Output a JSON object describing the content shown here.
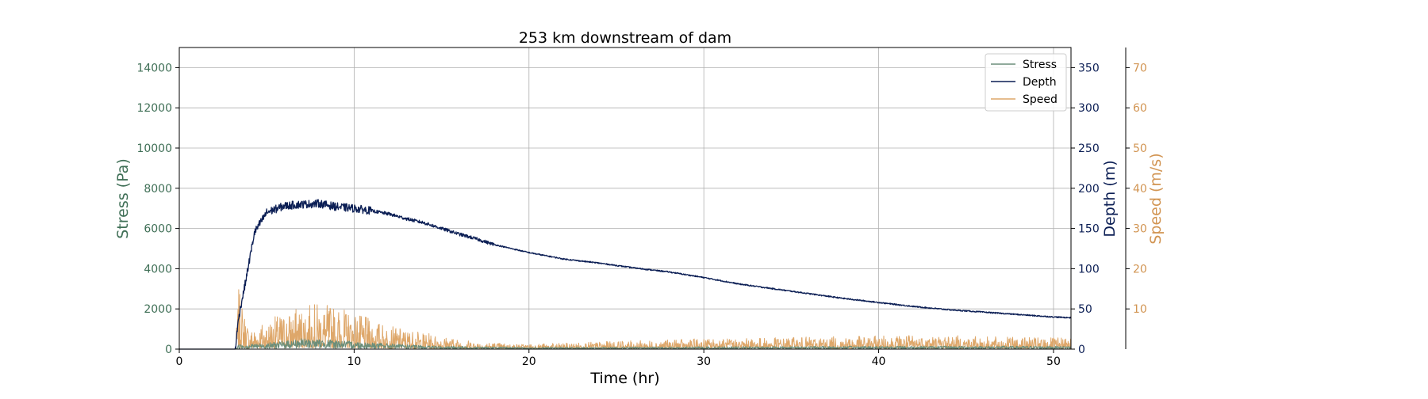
{
  "chart_data": {
    "type": "line",
    "title": "253 km downstream of dam",
    "xlabel": "Time (hr)",
    "xlim": [
      0,
      51
    ],
    "grid": true,
    "legend_position": "top-right",
    "colors": {
      "stress": "#6b8e7a",
      "depth": "#0c1f55",
      "speed": "#dea76a",
      "stress_axis": "#3f6f56",
      "depth_axis": "#0c1f55",
      "speed_axis": "#d29553"
    },
    "x_ticks": [
      "0",
      "10",
      "20",
      "30",
      "40",
      "50"
    ],
    "axes": {
      "stress": {
        "label": "Stress (Pa)",
        "ylim": [
          0,
          15000
        ],
        "ticks": [
          "0",
          "2000",
          "4000",
          "6000",
          "8000",
          "10000",
          "12000",
          "14000"
        ]
      },
      "depth": {
        "label": "Depth (m)",
        "ylim": [
          0,
          375
        ],
        "ticks": [
          "0",
          "50",
          "100",
          "150",
          "200",
          "250",
          "300",
          "350"
        ]
      },
      "speed": {
        "label": "Speed (m/s)",
        "ylim": [
          0,
          75
        ],
        "ticks": [
          "10",
          "20",
          "30",
          "40",
          "50",
          "60",
          "70"
        ]
      }
    },
    "legend": [
      "Stress",
      "Depth",
      "Speed"
    ],
    "series": [
      {
        "name": "Depth",
        "axis": "depth",
        "x": [
          0,
          3.2,
          3.4,
          3.8,
          4.3,
          5.0,
          6.0,
          7.0,
          8.0,
          9.0,
          10.0,
          11.0,
          12.0,
          13.0,
          14.0,
          15.0,
          16.0,
          17.0,
          18.0,
          20.0,
          22.0,
          24.0,
          26.0,
          28.0,
          30.0,
          32.0,
          34.0,
          36.0,
          38.0,
          40.0,
          42.0,
          44.0,
          46.0,
          48.0,
          50.0,
          51.0
        ],
        "y": [
          0,
          0,
          40,
          85,
          145,
          170,
          178,
          180,
          181,
          177,
          175,
          172,
          168,
          162,
          157,
          150,
          143,
          137,
          130,
          120,
          112,
          107,
          101,
          96,
          89,
          81,
          75,
          69,
          63,
          58,
          53,
          49,
          46,
          43,
          40,
          39
        ]
      },
      {
        "name": "Speed",
        "axis": "speed",
        "x": [
          0,
          3.2,
          3.4,
          4,
          5,
          6,
          7,
          8,
          9,
          10,
          11,
          12,
          13,
          14,
          15,
          16,
          17,
          18,
          19,
          20,
          22,
          25,
          28,
          30,
          32,
          35,
          38,
          40,
          42,
          44,
          46,
          48,
          50,
          51
        ],
        "y": [
          0,
          0,
          9,
          3,
          4.5,
          5.5,
          6.5,
          7,
          6.5,
          5.5,
          4.5,
          3.5,
          3,
          2.5,
          2,
          1.5,
          1.2,
          1,
          0.8,
          0.8,
          0.9,
          1.2,
          1.4,
          1.6,
          1.6,
          1.8,
          1.9,
          2,
          2.2,
          2.1,
          1.9,
          1.8,
          1.7,
          1.7
        ]
      },
      {
        "name": "Stress",
        "axis": "stress",
        "x": [
          0,
          3.2,
          3.4,
          5,
          7,
          9,
          11,
          13,
          15,
          20,
          30,
          40,
          51
        ],
        "y": [
          0,
          0,
          150,
          200,
          350,
          300,
          220,
          150,
          100,
          60,
          80,
          100,
          100
        ]
      }
    ]
  }
}
